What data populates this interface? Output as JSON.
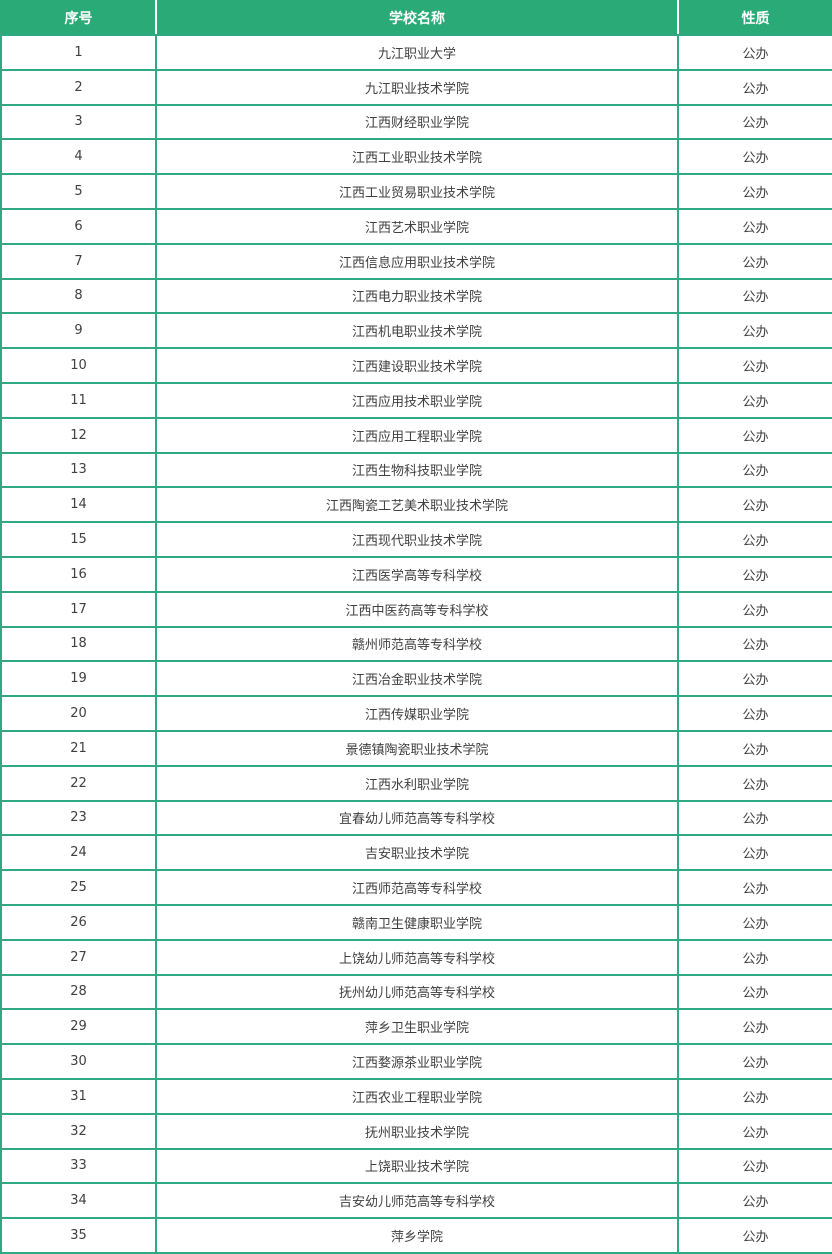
{
  "chart_data": {
    "type": "table",
    "columns": [
      "序号",
      "学校名称",
      "性质"
    ],
    "rows": [
      [
        "1",
        "九江职业大学",
        "公办"
      ],
      [
        "2",
        "九江职业技术学院",
        "公办"
      ],
      [
        "3",
        "江西财经职业学院",
        "公办"
      ],
      [
        "4",
        "江西工业职业技术学院",
        "公办"
      ],
      [
        "5",
        "江西工业贸易职业技术学院",
        "公办"
      ],
      [
        "6",
        "江西艺术职业学院",
        "公办"
      ],
      [
        "7",
        "江西信息应用职业技术学院",
        "公办"
      ],
      [
        "8",
        "江西电力职业技术学院",
        "公办"
      ],
      [
        "9",
        "江西机电职业技术学院",
        "公办"
      ],
      [
        "10",
        "江西建设职业技术学院",
        "公办"
      ],
      [
        "11",
        "江西应用技术职业学院",
        "公办"
      ],
      [
        "12",
        "江西应用工程职业学院",
        "公办"
      ],
      [
        "13",
        "江西生物科技职业学院",
        "公办"
      ],
      [
        "14",
        "江西陶瓷工艺美术职业技术学院",
        "公办"
      ],
      [
        "15",
        "江西现代职业技术学院",
        "公办"
      ],
      [
        "16",
        "江西医学高等专科学校",
        "公办"
      ],
      [
        "17",
        "江西中医药高等专科学校",
        "公办"
      ],
      [
        "18",
        "赣州师范高等专科学校",
        "公办"
      ],
      [
        "19",
        "江西冶金职业技术学院",
        "公办"
      ],
      [
        "20",
        "江西传媒职业学院",
        "公办"
      ],
      [
        "21",
        "景德镇陶瓷职业技术学院",
        "公办"
      ],
      [
        "22",
        "江西水利职业学院",
        "公办"
      ],
      [
        "23",
        "宜春幼儿师范高等专科学校",
        "公办"
      ],
      [
        "24",
        "吉安职业技术学院",
        "公办"
      ],
      [
        "25",
        "江西师范高等专科学校",
        "公办"
      ],
      [
        "26",
        "赣南卫生健康职业学院",
        "公办"
      ],
      [
        "27",
        "上饶幼儿师范高等专科学校",
        "公办"
      ],
      [
        "28",
        "抚州幼儿师范高等专科学校",
        "公办"
      ],
      [
        "29",
        "萍乡卫生职业学院",
        "公办"
      ],
      [
        "30",
        "江西婺源茶业职业学院",
        "公办"
      ],
      [
        "31",
        "江西农业工程职业学院",
        "公办"
      ],
      [
        "32",
        "抚州职业技术学院",
        "公办"
      ],
      [
        "33",
        "上饶职业技术学院",
        "公办"
      ],
      [
        "34",
        "吉安幼儿师范高等专科学校",
        "公办"
      ],
      [
        "35",
        "萍乡学院",
        "公办"
      ]
    ]
  },
  "colors": {
    "header_bg": "#29aa77",
    "header_text": "#ffffff",
    "grid_border": "#2fa983",
    "body_text": "#404040",
    "row_bg": "#ffffff"
  }
}
